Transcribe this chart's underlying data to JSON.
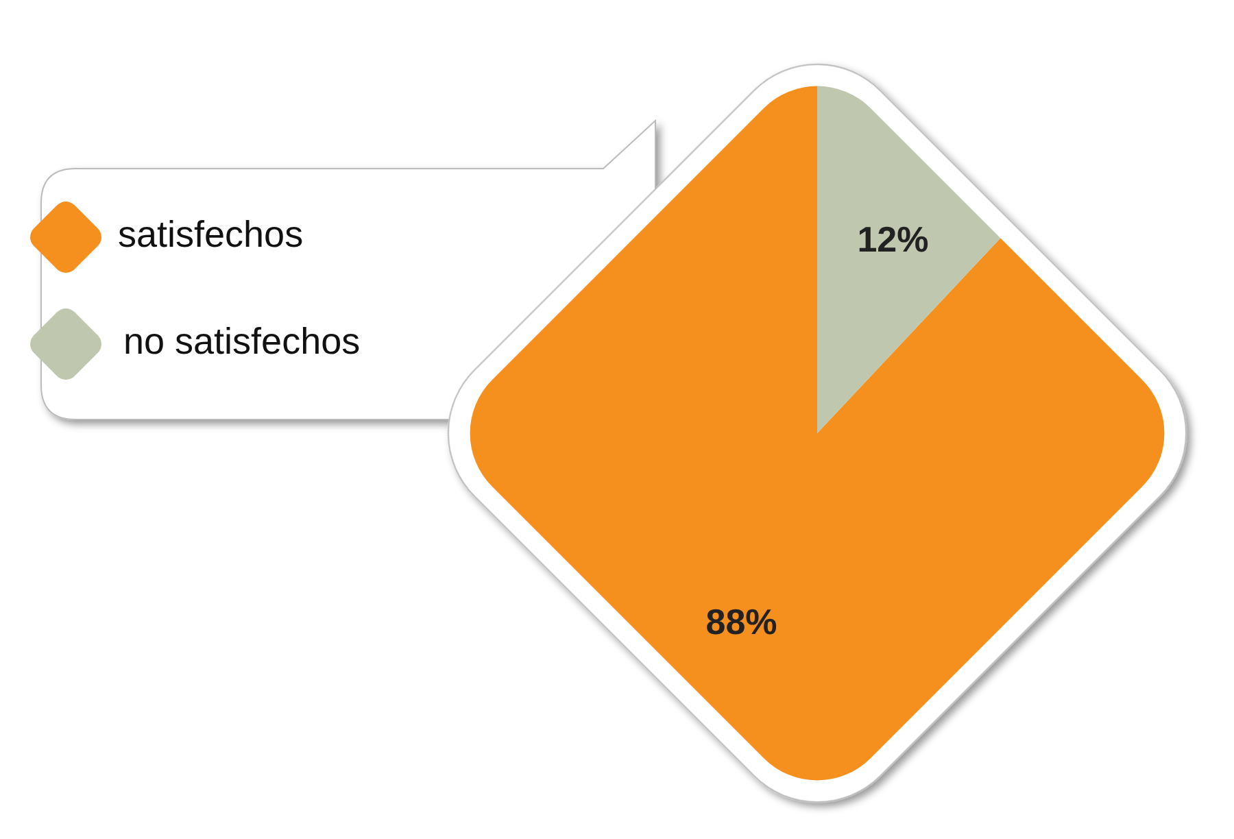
{
  "chart_data": {
    "type": "pie",
    "categories": [
      "satisfechos",
      "no satisfechos"
    ],
    "values": [
      88,
      12
    ],
    "colors": [
      "#f5901e",
      "#bfc7ae"
    ],
    "value_labels": [
      "88%",
      "12%"
    ],
    "legend": "left"
  }
}
